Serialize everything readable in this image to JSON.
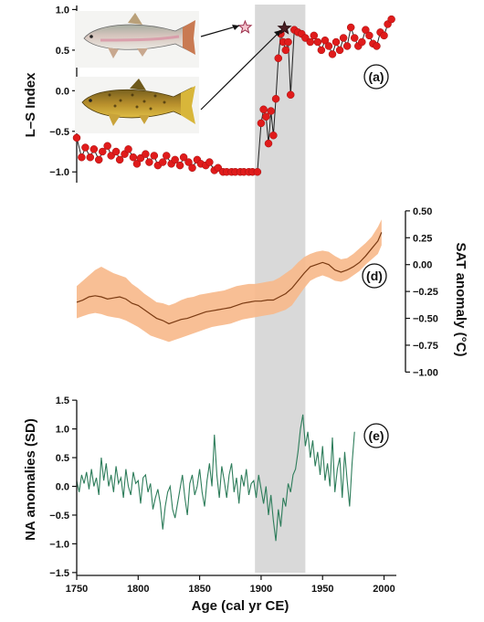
{
  "chart_data": [
    {
      "panel": "a",
      "type": "line",
      "ylabel": "L–S Index",
      "xlim": [
        1750,
        2010
      ],
      "ylim": [
        -1.2,
        1.05
      ],
      "yticks": [
        "1.0",
        "0.5",
        "0.0",
        "−0.5",
        "−1.0"
      ],
      "yticks_values": [
        1.0,
        0.5,
        0.0,
        -0.5,
        -1.0
      ],
      "label": "(a)",
      "color": "#e01b1b",
      "markers": true,
      "x": [
        1750,
        1754,
        1757,
        1761,
        1764,
        1768,
        1771,
        1775,
        1778,
        1782,
        1785,
        1789,
        1792,
        1796,
        1799,
        1802,
        1806,
        1809,
        1813,
        1816,
        1820,
        1823,
        1827,
        1830,
        1834,
        1837,
        1841,
        1844,
        1848,
        1851,
        1855,
        1858,
        1862,
        1865,
        1869,
        1872,
        1876,
        1879,
        1883,
        1886,
        1890,
        1893,
        1897,
        1900,
        1902,
        1904,
        1906,
        1908,
        1910,
        1912,
        1914,
        1916,
        1918,
        1920,
        1922,
        1924,
        1927,
        1930,
        1933,
        1936,
        1940,
        1943,
        1946,
        1949,
        1952,
        1955,
        1958,
        1961,
        1964,
        1967,
        1970,
        1973,
        1976,
        1979,
        1982,
        1985,
        1988,
        1991,
        1994,
        1997,
        2000,
        2003,
        2006
      ],
      "y": [
        -0.58,
        -0.82,
        -0.7,
        -0.82,
        -0.72,
        -0.85,
        -0.75,
        -0.68,
        -0.8,
        -0.75,
        -0.85,
        -0.78,
        -0.72,
        -0.82,
        -0.9,
        -0.83,
        -0.78,
        -0.88,
        -0.8,
        -0.92,
        -0.88,
        -0.8,
        -0.9,
        -0.85,
        -0.92,
        -0.82,
        -0.88,
        -0.95,
        -0.85,
        -0.9,
        -0.92,
        -0.88,
        -0.98,
        -0.95,
        -1.0,
        -1.0,
        -1.0,
        -1.0,
        -1.0,
        -1.0,
        -1.0,
        -1.0,
        -1.0,
        -0.4,
        -0.23,
        -0.32,
        -0.65,
        -0.25,
        -0.55,
        -0.1,
        0.4,
        0.7,
        0.6,
        0.5,
        0.6,
        -0.05,
        0.75,
        0.72,
        0.7,
        0.65,
        0.6,
        0.68,
        0.6,
        0.5,
        0.62,
        0.55,
        0.45,
        0.6,
        0.5,
        0.65,
        0.55,
        0.78,
        0.65,
        0.55,
        0.6,
        0.75,
        0.68,
        0.58,
        0.55,
        0.72,
        0.68,
        0.82,
        0.88
      ],
      "annotations": [
        {
          "x": 1887,
          "y": 0.78,
          "kind": "star",
          "fill": "#f4c6cf",
          "stroke": "#9b2d49"
        },
        {
          "x": 1919,
          "y": 0.77,
          "kind": "star",
          "fill": "#4a1f24",
          "stroke": "#2a0d10"
        }
      ],
      "images": [
        "rainbow-trout",
        "brown-trout"
      ]
    },
    {
      "panel": "d",
      "type": "area",
      "ylabel": "SAT anomaly (°C)",
      "xlim": [
        1750,
        2010
      ],
      "ylim": [
        -1.15,
        0.55
      ],
      "yticks": [
        "0.50",
        "0.25",
        "0.00",
        "−0.25",
        "−0.50",
        "−0.75",
        "−1.00"
      ],
      "yticks_values": [
        0.5,
        0.25,
        0.0,
        -0.25,
        -0.5,
        -0.75,
        -1.0
      ],
      "label": "(d)",
      "band_color": "#f7b88a",
      "line_color": "#7a3a12",
      "x": [
        1750,
        1755,
        1760,
        1765,
        1770,
        1775,
        1780,
        1785,
        1790,
        1795,
        1800,
        1805,
        1810,
        1815,
        1820,
        1825,
        1830,
        1835,
        1840,
        1845,
        1850,
        1855,
        1860,
        1865,
        1870,
        1875,
        1880,
        1885,
        1890,
        1895,
        1900,
        1905,
        1910,
        1915,
        1920,
        1925,
        1930,
        1935,
        1940,
        1945,
        1950,
        1955,
        1960,
        1965,
        1970,
        1975,
        1980,
        1985,
        1990,
        1995,
        1998
      ],
      "mean": [
        -0.35,
        -0.33,
        -0.3,
        -0.29,
        -0.3,
        -0.32,
        -0.31,
        -0.3,
        -0.32,
        -0.36,
        -0.38,
        -0.42,
        -0.46,
        -0.5,
        -0.52,
        -0.55,
        -0.53,
        -0.51,
        -0.5,
        -0.48,
        -0.46,
        -0.44,
        -0.43,
        -0.42,
        -0.41,
        -0.4,
        -0.38,
        -0.36,
        -0.35,
        -0.34,
        -0.34,
        -0.33,
        -0.33,
        -0.3,
        -0.27,
        -0.22,
        -0.15,
        -0.08,
        -0.02,
        0.0,
        0.02,
        0.0,
        -0.05,
        -0.07,
        -0.05,
        -0.02,
        0.02,
        0.08,
        0.15,
        0.22,
        0.3
      ],
      "upper": [
        -0.2,
        -0.15,
        -0.1,
        -0.05,
        -0.02,
        -0.05,
        -0.08,
        -0.1,
        -0.12,
        -0.18,
        -0.22,
        -0.27,
        -0.31,
        -0.35,
        -0.36,
        -0.38,
        -0.36,
        -0.33,
        -0.31,
        -0.3,
        -0.28,
        -0.27,
        -0.26,
        -0.25,
        -0.24,
        -0.22,
        -0.2,
        -0.19,
        -0.18,
        -0.18,
        -0.17,
        -0.16,
        -0.15,
        -0.12,
        -0.08,
        -0.04,
        0.02,
        0.07,
        0.1,
        0.12,
        0.13,
        0.12,
        0.08,
        0.05,
        0.06,
        0.1,
        0.15,
        0.2,
        0.26,
        0.35,
        0.42
      ],
      "lower": [
        -0.5,
        -0.48,
        -0.46,
        -0.45,
        -0.46,
        -0.48,
        -0.49,
        -0.5,
        -0.52,
        -0.55,
        -0.58,
        -0.62,
        -0.66,
        -0.68,
        -0.7,
        -0.72,
        -0.7,
        -0.68,
        -0.66,
        -0.64,
        -0.62,
        -0.6,
        -0.58,
        -0.57,
        -0.56,
        -0.55,
        -0.53,
        -0.51,
        -0.5,
        -0.49,
        -0.48,
        -0.47,
        -0.46,
        -0.44,
        -0.42,
        -0.38,
        -0.3,
        -0.22,
        -0.15,
        -0.12,
        -0.1,
        -0.12,
        -0.15,
        -0.16,
        -0.14,
        -0.1,
        -0.06,
        0.0,
        0.05,
        0.1,
        0.18
      ]
    },
    {
      "panel": "e",
      "type": "line",
      "ylabel": "NA anomalies (SD)",
      "xlabel": "Age (cal yr CE)",
      "xlim": [
        1750,
        2010
      ],
      "ylim": [
        -1.55,
        1.55
      ],
      "xticks": [
        "1750",
        "1800",
        "1850",
        "1900",
        "1950",
        "2000"
      ],
      "xticks_values": [
        1750,
        1800,
        1850,
        1900,
        1950,
        2000
      ],
      "yticks": [
        "1.5",
        "1.0",
        "0.5",
        "0.0",
        "−0.5",
        "−1.0",
        "−1.5"
      ],
      "yticks_values": [
        1.5,
        1.0,
        0.5,
        0.0,
        -0.5,
        -1.0,
        -1.5
      ],
      "label": "(e)",
      "color": "#2e7d5b",
      "x": [
        1750,
        1752,
        1754,
        1756,
        1758,
        1760,
        1762,
        1764,
        1766,
        1768,
        1770,
        1772,
        1774,
        1776,
        1778,
        1780,
        1782,
        1784,
        1786,
        1788,
        1790,
        1792,
        1794,
        1796,
        1798,
        1800,
        1802,
        1804,
        1806,
        1808,
        1810,
        1812,
        1814,
        1816,
        1818,
        1820,
        1822,
        1824,
        1826,
        1828,
        1830,
        1832,
        1834,
        1836,
        1838,
        1840,
        1842,
        1844,
        1846,
        1848,
        1850,
        1852,
        1854,
        1856,
        1858,
        1860,
        1862,
        1864,
        1866,
        1868,
        1870,
        1872,
        1874,
        1876,
        1878,
        1880,
        1882,
        1884,
        1886,
        1888,
        1890,
        1892,
        1894,
        1896,
        1898,
        1900,
        1902,
        1904,
        1906,
        1908,
        1910,
        1912,
        1914,
        1916,
        1918,
        1920,
        1922,
        1924,
        1926,
        1928,
        1930,
        1932,
        1934,
        1936,
        1938,
        1940,
        1942,
        1944,
        1946,
        1948,
        1950,
        1952,
        1954,
        1956,
        1958,
        1960,
        1962,
        1964,
        1966,
        1968,
        1970,
        1972,
        1974,
        1976
      ],
      "y": [
        0.1,
        -0.1,
        0.2,
        0.05,
        0.25,
        -0.05,
        0.3,
        0.0,
        0.15,
        -0.15,
        0.5,
        0.1,
        0.4,
        0.0,
        0.2,
        -0.1,
        0.35,
        0.05,
        0.15,
        -0.2,
        0.3,
        0.0,
        -0.15,
        0.25,
        0.05,
        0.1,
        -0.3,
        0.15,
        0.2,
        -0.1,
        0.05,
        -0.4,
        -0.2,
        -0.05,
        -0.3,
        -0.75,
        -0.35,
        -0.1,
        0.0,
        -0.4,
        -0.55,
        -0.3,
        -0.05,
        0.2,
        -0.2,
        -0.5,
        0.05,
        0.2,
        -0.15,
        0.0,
        0.3,
        -0.1,
        -0.35,
        0.1,
        0.4,
        0.0,
        0.9,
        0.2,
        -0.2,
        0.35,
        0.1,
        -0.2,
        0.2,
        0.4,
        -0.1,
        0.15,
        -0.3,
        0.2,
        0.0,
        0.3,
        -0.15,
        0.05,
        0.1,
        -0.2,
        0.2,
        -0.05,
        -0.3,
        0.0,
        -0.5,
        -0.15,
        -0.6,
        -0.95,
        -0.4,
        -0.7,
        -0.2,
        -0.35,
        0.05,
        -0.1,
        0.2,
        0.3,
        0.6,
        1.0,
        1.25,
        0.7,
        0.95,
        0.5,
        0.8,
        0.35,
        0.6,
        0.2,
        0.7,
        0.1,
        0.4,
        0.0,
        0.85,
        -0.1,
        0.3,
        0.5,
        -0.2,
        0.6,
        0.1,
        -0.35,
        0.4,
        0.95
      ]
    }
  ],
  "shaded_interval": {
    "x0": 1895,
    "x1": 1936,
    "color": "#d9d9d9"
  }
}
